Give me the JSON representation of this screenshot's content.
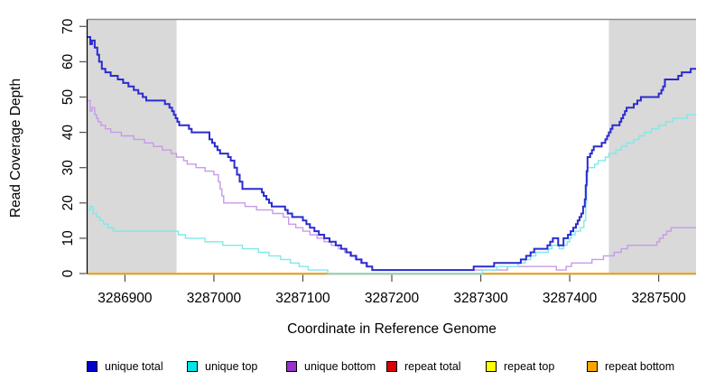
{
  "window": {
    "background": "#FFFFFF"
  },
  "axes": {
    "axis_color": "#000000",
    "tick_color": "#4D4D4D",
    "top_border_color": "#8C8C8C",
    "tick_label_color": "#000000"
  },
  "chart_data": {
    "type": "line",
    "step": true,
    "title": "",
    "xlabel": "Coordinate in Reference Genome",
    "ylabel": "Read Coverage Depth",
    "xlim": [
      3286858,
      3287542
    ],
    "ylim": [
      0,
      72
    ],
    "x_ticks": [
      3286900,
      3287000,
      3287100,
      3287200,
      3287300,
      3287400,
      3287500
    ],
    "y_ticks": [
      0,
      10,
      20,
      30,
      40,
      50,
      60,
      70
    ],
    "grid": false,
    "legend_position": "bottom",
    "shaded_regions": [
      {
        "from": 3286858,
        "to": 3286958,
        "color": "#D9D9D9"
      },
      {
        "from": 3287444,
        "to": 3287542,
        "color": "#D9D9D9"
      }
    ],
    "draw_order": [
      "repeat total",
      "repeat top",
      "repeat bottom",
      "unique bottom",
      "unique top",
      "unique total"
    ],
    "series": [
      {
        "name": "unique total",
        "legend_color": "#0000CD",
        "line_color": "#2B2BD0",
        "line_width": 2,
        "points": [
          [
            3286858,
            67
          ],
          [
            3286861,
            65
          ],
          [
            3286863,
            66
          ],
          [
            3286866,
            64
          ],
          [
            3286869,
            62
          ],
          [
            3286871,
            60
          ],
          [
            3286874,
            58
          ],
          [
            3286878,
            57
          ],
          [
            3286884,
            56
          ],
          [
            3286892,
            55
          ],
          [
            3286898,
            54
          ],
          [
            3286904,
            53
          ],
          [
            3286910,
            52
          ],
          [
            3286915,
            51
          ],
          [
            3286920,
            50
          ],
          [
            3286924,
            49
          ],
          [
            3286945,
            48
          ],
          [
            3286950,
            47
          ],
          [
            3286953,
            46
          ],
          [
            3286955,
            45
          ],
          [
            3286957,
            44
          ],
          [
            3286959,
            43
          ],
          [
            3286961,
            42
          ],
          [
            3286972,
            41
          ],
          [
            3286975,
            40
          ],
          [
            3286995,
            38
          ],
          [
            3286998,
            37
          ],
          [
            3287001,
            36
          ],
          [
            3287004,
            35
          ],
          [
            3287007,
            34
          ],
          [
            3287016,
            33
          ],
          [
            3287019,
            32
          ],
          [
            3287023,
            30
          ],
          [
            3287026,
            28
          ],
          [
            3287029,
            26
          ],
          [
            3287032,
            24
          ],
          [
            3287054,
            23
          ],
          [
            3287056,
            22
          ],
          [
            3287059,
            21
          ],
          [
            3287062,
            20
          ],
          [
            3287065,
            19
          ],
          [
            3287080,
            18
          ],
          [
            3287083,
            17
          ],
          [
            3287088,
            16
          ],
          [
            3287100,
            15
          ],
          [
            3287104,
            14
          ],
          [
            3287108,
            13
          ],
          [
            3287113,
            12
          ],
          [
            3287118,
            11
          ],
          [
            3287124,
            10
          ],
          [
            3287130,
            9
          ],
          [
            3287137,
            8
          ],
          [
            3287143,
            7
          ],
          [
            3287149,
            6
          ],
          [
            3287154,
            5
          ],
          [
            3287160,
            4
          ],
          [
            3287166,
            3
          ],
          [
            3287172,
            2
          ],
          [
            3287178,
            1
          ],
          [
            3287292,
            2
          ],
          [
            3287315,
            3
          ],
          [
            3287345,
            4
          ],
          [
            3287351,
            5
          ],
          [
            3287356,
            6
          ],
          [
            3287360,
            7
          ],
          [
            3287375,
            8
          ],
          [
            3287378,
            9
          ],
          [
            3287381,
            10
          ],
          [
            3287387,
            8
          ],
          [
            3287393,
            10
          ],
          [
            3287398,
            11
          ],
          [
            3287401,
            12
          ],
          [
            3287404,
            13
          ],
          [
            3287407,
            14
          ],
          [
            3287409,
            15
          ],
          [
            3287411,
            16
          ],
          [
            3287413,
            17
          ],
          [
            3287415,
            19
          ],
          [
            3287417,
            21
          ],
          [
            3287418,
            25
          ],
          [
            3287419,
            29
          ],
          [
            3287420,
            33
          ],
          [
            3287423,
            34
          ],
          [
            3287425,
            35
          ],
          [
            3287427,
            36
          ],
          [
            3287436,
            37
          ],
          [
            3287440,
            38
          ],
          [
            3287442,
            39
          ],
          [
            3287444,
            40
          ],
          [
            3287446,
            41
          ],
          [
            3287448,
            42
          ],
          [
            3287456,
            43
          ],
          [
            3287458,
            44
          ],
          [
            3287460,
            45
          ],
          [
            3287462,
            46
          ],
          [
            3287464,
            47
          ],
          [
            3287472,
            48
          ],
          [
            3287476,
            49
          ],
          [
            3287480,
            50
          ],
          [
            3287500,
            51
          ],
          [
            3287503,
            52
          ],
          [
            3287505,
            53
          ],
          [
            3287507,
            55
          ],
          [
            3287522,
            56
          ],
          [
            3287526,
            57
          ],
          [
            3287536,
            58
          ]
        ]
      },
      {
        "name": "unique top",
        "legend_color": "#00E5E5",
        "line_color": "#7DE9E9",
        "line_width": 1.4,
        "points": [
          [
            3286858,
            18
          ],
          [
            3286861,
            19
          ],
          [
            3286864,
            17
          ],
          [
            3286868,
            16
          ],
          [
            3286872,
            15
          ],
          [
            3286876,
            14
          ],
          [
            3286881,
            13
          ],
          [
            3286887,
            12
          ],
          [
            3286960,
            11
          ],
          [
            3286968,
            10
          ],
          [
            3286990,
            9
          ],
          [
            3287010,
            8
          ],
          [
            3287032,
            7
          ],
          [
            3287050,
            6
          ],
          [
            3287062,
            5
          ],
          [
            3287075,
            4
          ],
          [
            3287086,
            3
          ],
          [
            3287096,
            2
          ],
          [
            3287106,
            1
          ],
          [
            3287128,
            0
          ],
          [
            3287302,
            1
          ],
          [
            3287318,
            2
          ],
          [
            3287342,
            3
          ],
          [
            3287350,
            4
          ],
          [
            3287356,
            5
          ],
          [
            3287362,
            6
          ],
          [
            3287376,
            7
          ],
          [
            3287380,
            8
          ],
          [
            3287388,
            7
          ],
          [
            3287393,
            8
          ],
          [
            3287397,
            9
          ],
          [
            3287400,
            10
          ],
          [
            3287402,
            11
          ],
          [
            3287406,
            12
          ],
          [
            3287412,
            13
          ],
          [
            3287416,
            15
          ],
          [
            3287418,
            20
          ],
          [
            3287419,
            26
          ],
          [
            3287420,
            30
          ],
          [
            3287428,
            31
          ],
          [
            3287432,
            32
          ],
          [
            3287440,
            33
          ],
          [
            3287444,
            34
          ],
          [
            3287452,
            35
          ],
          [
            3287458,
            36
          ],
          [
            3287464,
            37
          ],
          [
            3287472,
            38
          ],
          [
            3287478,
            39
          ],
          [
            3287484,
            40
          ],
          [
            3287492,
            41
          ],
          [
            3287500,
            42
          ],
          [
            3287508,
            43
          ],
          [
            3287516,
            44
          ],
          [
            3287532,
            45
          ]
        ]
      },
      {
        "name": "unique bottom",
        "legend_color": "#9932CC",
        "line_color": "#C79BE8",
        "line_width": 1.4,
        "points": [
          [
            3286858,
            49
          ],
          [
            3286861,
            46
          ],
          [
            3286863,
            47
          ],
          [
            3286866,
            45
          ],
          [
            3286868,
            44
          ],
          [
            3286870,
            43
          ],
          [
            3286873,
            42
          ],
          [
            3286878,
            41
          ],
          [
            3286884,
            40
          ],
          [
            3286896,
            39
          ],
          [
            3286910,
            38
          ],
          [
            3286922,
            37
          ],
          [
            3286932,
            36
          ],
          [
            3286942,
            35
          ],
          [
            3286952,
            34
          ],
          [
            3286958,
            33
          ],
          [
            3286966,
            32
          ],
          [
            3286970,
            31
          ],
          [
            3286980,
            30
          ],
          [
            3286990,
            29
          ],
          [
            3287000,
            28
          ],
          [
            3287005,
            26
          ],
          [
            3287007,
            24
          ],
          [
            3287009,
            22
          ],
          [
            3287011,
            20
          ],
          [
            3287035,
            19
          ],
          [
            3287048,
            18
          ],
          [
            3287066,
            17
          ],
          [
            3287078,
            16
          ],
          [
            3287084,
            14
          ],
          [
            3287092,
            13
          ],
          [
            3287100,
            12
          ],
          [
            3287108,
            11
          ],
          [
            3287116,
            10
          ],
          [
            3287124,
            9
          ],
          [
            3287132,
            8
          ],
          [
            3287140,
            7
          ],
          [
            3287147,
            6
          ],
          [
            3287153,
            5
          ],
          [
            3287159,
            4
          ],
          [
            3287165,
            3
          ],
          [
            3287171,
            2
          ],
          [
            3287178,
            1
          ],
          [
            3287330,
            2
          ],
          [
            3287385,
            1
          ],
          [
            3287396,
            2
          ],
          [
            3287402,
            3
          ],
          [
            3287425,
            4
          ],
          [
            3287438,
            5
          ],
          [
            3287450,
            6
          ],
          [
            3287458,
            7
          ],
          [
            3287465,
            8
          ],
          [
            3287498,
            9
          ],
          [
            3287501,
            10
          ],
          [
            3287505,
            11
          ],
          [
            3287509,
            12
          ],
          [
            3287514,
            13
          ]
        ]
      },
      {
        "name": "repeat total",
        "legend_color": "#DD0000",
        "line_color": "#DD0000",
        "line_width": 1.6,
        "points": [
          [
            3286858,
            0
          ]
        ]
      },
      {
        "name": "repeat top",
        "legend_color": "#FFFF00",
        "line_color": "#FFFF00",
        "line_width": 1.6,
        "points": [
          [
            3286858,
            0
          ]
        ]
      },
      {
        "name": "repeat bottom",
        "legend_color": "#FFA500",
        "line_color": "#FFA500",
        "line_width": 1.6,
        "points": [
          [
            3286858,
            0
          ]
        ]
      }
    ]
  },
  "legend": {
    "item_x_positions": [
      96,
      207,
      317,
      428,
      538,
      650
    ],
    "labels": [
      "unique total",
      "unique top",
      "unique bottom",
      "repeat total",
      "repeat top",
      "repeat bottom"
    ]
  }
}
